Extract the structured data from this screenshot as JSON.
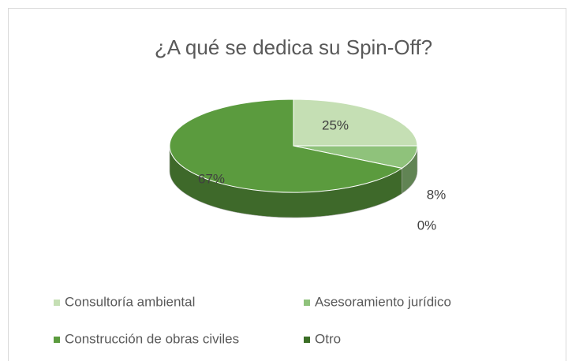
{
  "chart_data": {
    "type": "pie",
    "title": "¿A qué se dedica su Spin-Off?",
    "categories": [
      "Consultoría ambiental",
      "Asesoramiento jurídico",
      "Construcción de obras civiles",
      "Otro"
    ],
    "values": [
      25,
      8,
      67,
      0
    ],
    "value_labels": [
      "25%",
      "8%",
      "67%",
      "0%"
    ],
    "colors": [
      "#c5dfb4",
      "#8fc27b",
      "#5b9b3e",
      "#3b6e26"
    ],
    "legend": "bottom"
  }
}
